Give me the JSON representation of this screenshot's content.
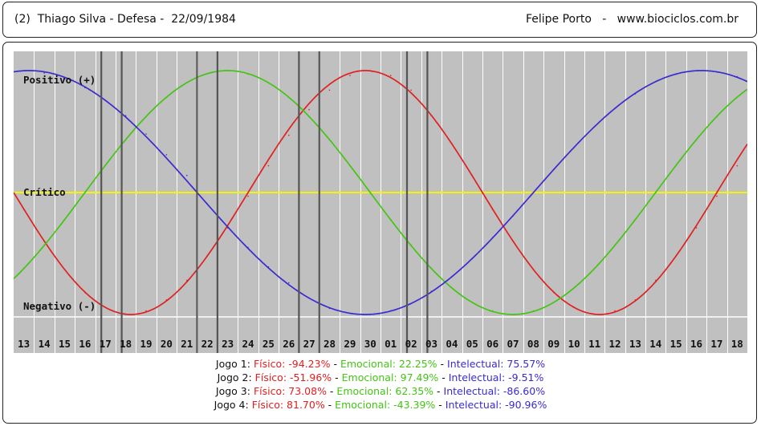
{
  "header": {
    "left_text": "(2)  Thiago Silva - Defesa -  22/09/1984",
    "right_text": "Felipe Porto   -   www.biociclos.com.br"
  },
  "chart_data": {
    "type": "line",
    "annotations": {
      "positive": "Positivo (+)",
      "critical": "Crítico",
      "negative": "Negativo (-)"
    },
    "categories": [
      "13",
      "14",
      "15",
      "16",
      "17",
      "18",
      "19",
      "20",
      "21",
      "22",
      "23",
      "24",
      "25",
      "26",
      "27",
      "28",
      "29",
      "30",
      "01",
      "02",
      "03",
      "04",
      "05",
      "06",
      "07",
      "08",
      "09",
      "10",
      "11",
      "12",
      "13",
      "14",
      "15",
      "16",
      "17",
      "18"
    ],
    "ylim": [
      -100,
      100
    ],
    "series": [
      {
        "key": "fisico",
        "color": "#e02020",
        "period": 23,
        "values": [
          -14.0,
          -40.0,
          -63.0,
          -82.0,
          -94.2,
          -100.0,
          -97.0,
          -88.0,
          -72.0,
          -52.0,
          -29.0,
          -3.0,
          22.0,
          47.0,
          68.0,
          84.0,
          96.0,
          100.0,
          96.0,
          84.0,
          63.0,
          40.0,
          14.0,
          -14.0,
          -40.0,
          -63.0,
          -82.0,
          -94.0,
          -100.0,
          -97.0,
          -88.0,
          -72.0,
          -52.0,
          -29.0,
          -3.0,
          22.0
        ]
      },
      {
        "key": "emocional",
        "color": "#44c414",
        "period": 28,
        "values": [
          -62.0,
          -43.0,
          -22.0,
          0.0,
          22.3,
          43.0,
          62.0,
          78.0,
          90.0,
          97.5,
          100.0,
          97.0,
          90.0,
          78.0,
          62.0,
          43.0,
          22.0,
          0.0,
          -22.0,
          -43.0,
          -62.0,
          -78.0,
          -90.0,
          -97.0,
          -100.0,
          -97.0,
          -90.0,
          -78.0,
          -62.0,
          -43.0,
          -22.0,
          0.0,
          22.0,
          43.0,
          62.0,
          78.0
        ]
      },
      {
        "key": "intelectual",
        "color": "#3a2bd0",
        "period": 33,
        "values": [
          100.0,
          98.0,
          93.0,
          86.0,
          75.6,
          63.0,
          48.0,
          31.0,
          14.0,
          -9.5,
          -28.0,
          -45.0,
          -61.0,
          -74.0,
          -86.6,
          -95.0,
          -99.0,
          -100.0,
          -97.0,
          -91.0,
          -81.0,
          -69.0,
          -54.0,
          -37.0,
          -19.0,
          0.0,
          19.0,
          37.0,
          54.0,
          69.0,
          81.0,
          91.0,
          97.0,
          100.0,
          99.0,
          95.0
        ]
      }
    ],
    "game_markers": [
      4.3,
      5.3,
      9.0,
      10.0,
      14.0,
      15.0,
      19.3,
      20.3
    ],
    "grid": true
  },
  "legend": [
    {
      "label": "Jogo 1: ",
      "fisico": "Físico: -94.23%",
      "emocional": "Emocional: 22.25%",
      "intelectual": "Intelectual: 75.57%"
    },
    {
      "label": "Jogo 2: ",
      "fisico": "Físico: -51.96%",
      "emocional": "Emocional: 97.49%",
      "intelectual": "Intelectual: -9.51%"
    },
    {
      "label": "Jogo 3: ",
      "fisico": "Físico: 73.08%",
      "emocional": "Emocional: 62.35%",
      "intelectual": "Intelectual: -86.60%"
    },
    {
      "label": "Jogo 4: ",
      "fisico": "Físico: 81.70%",
      "emocional": "Emocional: -43.39%",
      "intelectual": "Intelectual: -90.96%"
    }
  ],
  "colors": {
    "plot_bg": "#c0c0c0",
    "grid_line": "#ffffff",
    "critical_line": "#f5f500",
    "marker_line": "#555555"
  }
}
